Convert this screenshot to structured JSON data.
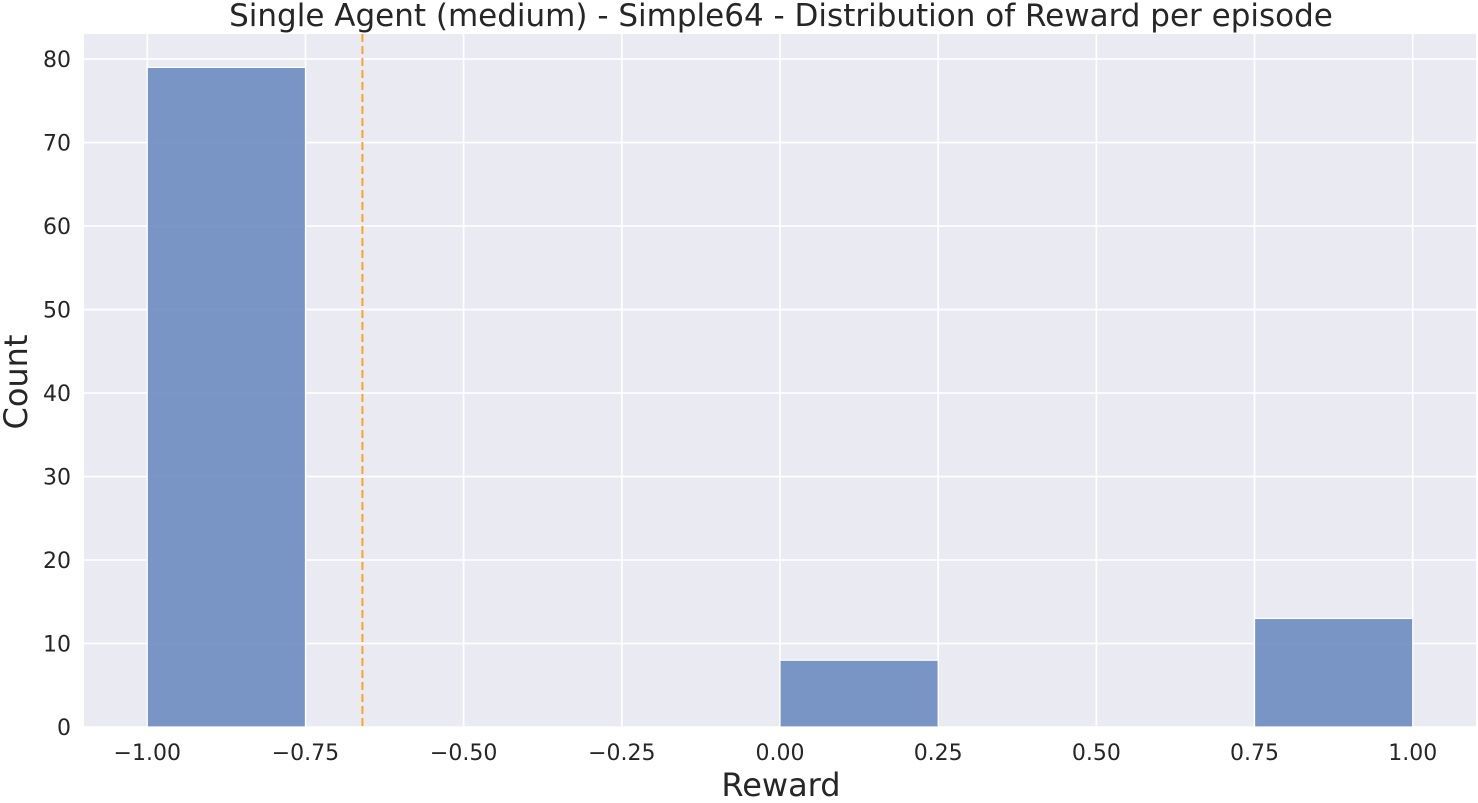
{
  "chart_data": {
    "type": "bar",
    "title": "Single Agent (medium) - Simple64 - Distribution of Reward per episode",
    "xlabel": "Reward",
    "ylabel": "Count",
    "xlim": [
      -1.1,
      1.1
    ],
    "ylim": [
      0,
      83
    ],
    "xticks": [
      -1.0,
      -0.75,
      -0.5,
      -0.25,
      0.0,
      0.25,
      0.5,
      0.75,
      1.0
    ],
    "xtick_labels": [
      "−1.00",
      "−0.75",
      "−0.50",
      "−0.25",
      "0.00",
      "0.25",
      "0.50",
      "0.75",
      "1.00"
    ],
    "yticks": [
      0,
      10,
      20,
      30,
      40,
      50,
      60,
      70,
      80
    ],
    "ytick_labels": [
      "0",
      "10",
      "20",
      "30",
      "40",
      "50",
      "60",
      "70",
      "80"
    ],
    "bins": [
      {
        "x0": -1.0,
        "x1": -0.75,
        "count": 79
      },
      {
        "x0": 0.0,
        "x1": 0.25,
        "count": 8
      },
      {
        "x0": 0.75,
        "x1": 1.0,
        "count": 13
      }
    ],
    "reference_line": {
      "x": -0.66,
      "style": "dashed",
      "color": "#f5a623"
    },
    "grid": true,
    "colors": {
      "bar": "#6b8cc0",
      "background": "#eaeaf2",
      "grid": "#ffffff"
    }
  }
}
